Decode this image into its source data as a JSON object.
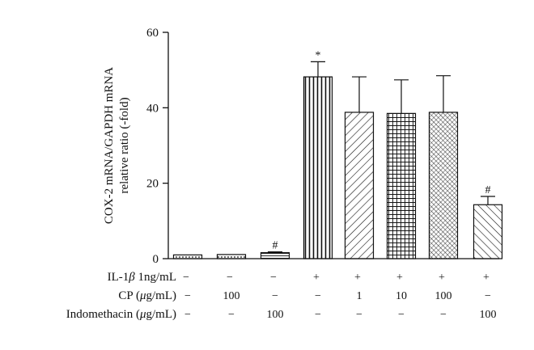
{
  "chart_data": {
    "type": "bar",
    "title": "",
    "xlabel": "",
    "ylabel_lines": [
      "COX-2 mRNA/GAPDH mRNA",
      "relative ratio (-fold)"
    ],
    "ylim": [
      0,
      60
    ],
    "yticks": [
      0,
      20,
      40,
      60
    ],
    "grid": false,
    "legend": "none",
    "bar_color": "#111111",
    "bars": [
      {
        "value": 1.0,
        "error": 0.0,
        "pattern": "dots",
        "annotation": ""
      },
      {
        "value": 1.1,
        "error": 0.0,
        "pattern": "dots",
        "annotation": ""
      },
      {
        "value": 1.6,
        "error": 0.2,
        "pattern": "hlines",
        "annotation": "#"
      },
      {
        "value": 48.2,
        "error": 4.0,
        "pattern": "vlines",
        "annotation": "*"
      },
      {
        "value": 38.8,
        "error": 9.4,
        "pattern": "diag-back",
        "annotation": ""
      },
      {
        "value": 38.5,
        "error": 8.9,
        "pattern": "grid",
        "annotation": ""
      },
      {
        "value": 38.8,
        "error": 9.7,
        "pattern": "fine-diag",
        "annotation": ""
      },
      {
        "value": 14.3,
        "error": 2.2,
        "pattern": "diag-fwd",
        "annotation": "#"
      }
    ],
    "condition_rows": [
      {
        "label_pre": "IL-1",
        "label_greek": "β",
        "label_post": " 1ng/mL",
        "cells": [
          "−",
          "−",
          "−",
          "+",
          "+",
          "+",
          "+",
          "+"
        ]
      },
      {
        "label_pre": "CP (",
        "label_greek": "μ",
        "label_post": "g/mL)",
        "cells": [
          "−",
          "100",
          "−",
          "−",
          "1",
          "10",
          "100",
          "−"
        ]
      },
      {
        "label_pre": "Indomethacin (",
        "label_greek": "μ",
        "label_post": "g/mL)",
        "cells": [
          "−",
          "−",
          "100",
          "−",
          "−",
          "−",
          "−",
          "100"
        ]
      }
    ]
  }
}
